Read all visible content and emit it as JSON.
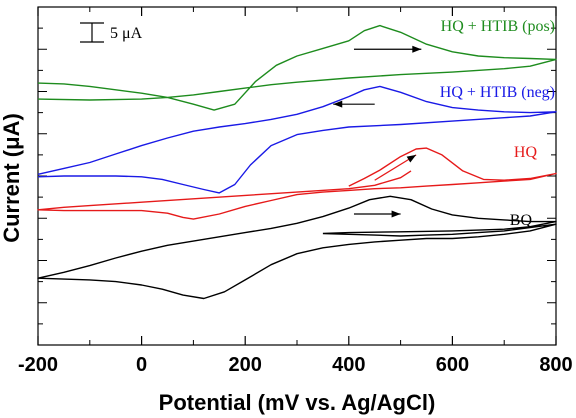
{
  "chart_data": {
    "type": "line",
    "xlabel": "Potential (mV vs. Ag/AgCl)",
    "ylabel": "Current (μA)",
    "xlim": [
      -200,
      800
    ],
    "x_ticks": [
      -200,
      0,
      200,
      400,
      600,
      800
    ],
    "x_tick_labels": [
      "-200",
      "0",
      "200",
      "400",
      "600",
      "800"
    ],
    "y_scale_bar_label": "5 μA",
    "grid": false,
    "series": [
      {
        "name": "HQ + HTIB (pos)",
        "color": "#1e8c1e",
        "scan_direction": "right",
        "points": [
          [
            -200,
            31.0
          ],
          [
            -150,
            30.9
          ],
          [
            -100,
            30.6
          ],
          [
            -50,
            30.2
          ],
          [
            0,
            29.8
          ],
          [
            50,
            29.3
          ],
          [
            100,
            28.5
          ],
          [
            140,
            27.8
          ],
          [
            180,
            28.5
          ],
          [
            220,
            31.2
          ],
          [
            260,
            33.1
          ],
          [
            300,
            34.2
          ],
          [
            350,
            35.1
          ],
          [
            400,
            36.0
          ],
          [
            430,
            37.2
          ],
          [
            460,
            37.8
          ],
          [
            500,
            37.0
          ],
          [
            550,
            35.6
          ],
          [
            600,
            34.7
          ],
          [
            650,
            34.2
          ],
          [
            700,
            34.0
          ],
          [
            750,
            33.9
          ],
          [
            800,
            33.8
          ],
          [
            750,
            33.0
          ],
          [
            700,
            32.7
          ],
          [
            600,
            32.3
          ],
          [
            500,
            32.0
          ],
          [
            400,
            31.6
          ],
          [
            300,
            31.1
          ],
          [
            250,
            30.8
          ],
          [
            200,
            30.4
          ],
          [
            150,
            30.0
          ],
          [
            100,
            29.6
          ],
          [
            50,
            29.3
          ],
          [
            0,
            29.1
          ],
          [
            -100,
            29.0
          ],
          [
            -200,
            29.1
          ]
        ]
      },
      {
        "name": "HQ + HTIB (neg)",
        "color": "#1a1ae6",
        "scan_direction": "left",
        "points": [
          [
            -200,
            20.2
          ],
          [
            -150,
            20.9
          ],
          [
            -100,
            21.6
          ],
          [
            -50,
            22.6
          ],
          [
            0,
            23.6
          ],
          [
            50,
            24.5
          ],
          [
            100,
            25.3
          ],
          [
            150,
            25.8
          ],
          [
            200,
            26.2
          ],
          [
            250,
            26.7
          ],
          [
            300,
            27.3
          ],
          [
            350,
            28.2
          ],
          [
            400,
            29.4
          ],
          [
            430,
            30.2
          ],
          [
            460,
            30.6
          ],
          [
            500,
            29.9
          ],
          [
            550,
            28.8
          ],
          [
            600,
            28.1
          ],
          [
            650,
            27.8
          ],
          [
            700,
            27.6
          ],
          [
            750,
            27.5
          ],
          [
            800,
            27.6
          ],
          [
            750,
            27.1
          ],
          [
            700,
            26.9
          ],
          [
            600,
            26.5
          ],
          [
            500,
            26.1
          ],
          [
            400,
            25.8
          ],
          [
            350,
            25.4
          ],
          [
            300,
            24.9
          ],
          [
            250,
            23.6
          ],
          [
            210,
            21.3
          ],
          [
            180,
            19.0
          ],
          [
            150,
            18.0
          ],
          [
            120,
            18.4
          ],
          [
            80,
            19.0
          ],
          [
            40,
            19.6
          ],
          [
            0,
            19.9
          ],
          [
            -50,
            20.0
          ],
          [
            -100,
            20.0
          ],
          [
            -150,
            20.0
          ],
          [
            -200,
            19.9
          ]
        ]
      },
      {
        "name": "HQ",
        "color": "#e61a1a",
        "scan_direction": "right",
        "points": [
          [
            400,
            18.8
          ],
          [
            430,
            19.7
          ],
          [
            460,
            20.7
          ],
          [
            500,
            22.3
          ],
          [
            530,
            23.2
          ],
          [
            550,
            23.3
          ],
          [
            580,
            22.5
          ],
          [
            620,
            20.6
          ],
          [
            660,
            19.6
          ],
          [
            700,
            19.5
          ],
          [
            750,
            19.7
          ],
          [
            800,
            20.3
          ],
          [
            750,
            19.6
          ],
          [
            700,
            19.4
          ],
          [
            650,
            19.2
          ],
          [
            600,
            19.0
          ],
          [
            550,
            18.8
          ],
          [
            500,
            18.6
          ],
          [
            450,
            18.5
          ],
          [
            400,
            18.3
          ],
          [
            350,
            18.1
          ],
          [
            300,
            17.8
          ],
          [
            250,
            17.1
          ],
          [
            200,
            16.4
          ],
          [
            150,
            15.5
          ],
          [
            100,
            14.9
          ],
          [
            80,
            15.1
          ],
          [
            50,
            15.6
          ],
          [
            0,
            15.9
          ],
          [
            -50,
            15.9
          ],
          [
            -100,
            15.9
          ],
          [
            -150,
            15.9
          ],
          [
            -200,
            16.0
          ],
          [
            -150,
            16.3
          ],
          [
            -100,
            16.5
          ],
          [
            0,
            16.9
          ],
          [
            100,
            17.3
          ],
          [
            200,
            17.7
          ],
          [
            300,
            18.1
          ],
          [
            400,
            18.5
          ],
          [
            450,
            18.9
          ],
          [
            500,
            19.8
          ],
          [
            520,
            20.6
          ]
        ]
      },
      {
        "name": "BQ",
        "color": "#000000",
        "scan_direction": "right",
        "points": [
          [
            350,
            13.2
          ],
          [
            400,
            13.1
          ],
          [
            450,
            13.0
          ],
          [
            500,
            12.9
          ],
          [
            550,
            13.0
          ],
          [
            600,
            13.1
          ],
          [
            650,
            13.3
          ],
          [
            700,
            13.5
          ],
          [
            750,
            13.9
          ],
          [
            800,
            14.3
          ],
          [
            750,
            13.5
          ],
          [
            700,
            13.1
          ],
          [
            650,
            12.8
          ],
          [
            600,
            12.6
          ],
          [
            550,
            12.6
          ],
          [
            500,
            12.4
          ],
          [
            450,
            12.2
          ],
          [
            400,
            11.9
          ],
          [
            350,
            11.5
          ],
          [
            300,
            10.8
          ],
          [
            250,
            9.5
          ],
          [
            200,
            7.7
          ],
          [
            160,
            6.3
          ],
          [
            120,
            5.5
          ],
          [
            80,
            5.9
          ],
          [
            40,
            6.6
          ],
          [
            0,
            7.1
          ],
          [
            -50,
            7.5
          ],
          [
            -100,
            7.7
          ],
          [
            -150,
            7.8
          ],
          [
            -200,
            7.9
          ],
          [
            -150,
            8.6
          ],
          [
            -100,
            9.4
          ],
          [
            -50,
            10.3
          ],
          [
            0,
            11.1
          ],
          [
            50,
            11.8
          ],
          [
            100,
            12.3
          ],
          [
            150,
            12.8
          ],
          [
            200,
            13.3
          ],
          [
            250,
            13.8
          ],
          [
            300,
            14.4
          ],
          [
            350,
            15.2
          ],
          [
            400,
            16.2
          ],
          [
            440,
            17.2
          ],
          [
            480,
            17.6
          ],
          [
            520,
            17.2
          ],
          [
            560,
            16.1
          ],
          [
            600,
            15.4
          ],
          [
            650,
            15.0
          ],
          [
            700,
            14.8
          ],
          [
            750,
            14.6
          ],
          [
            800,
            14.6
          ],
          [
            750,
            14.0
          ],
          [
            700,
            13.7
          ],
          [
            650,
            13.6
          ],
          [
            600,
            13.5
          ],
          [
            500,
            13.4
          ],
          [
            400,
            13.3
          ],
          [
            350,
            13.2
          ]
        ]
      }
    ],
    "arrows": [
      {
        "series": "HQ + HTIB (pos)",
        "direction": "right",
        "from": [
          410,
          35.0
        ],
        "to": [
          540,
          35.0
        ]
      },
      {
        "series": "HQ + HTIB (neg)",
        "direction": "left",
        "from": [
          450,
          28.5
        ],
        "to": [
          370,
          28.5
        ]
      },
      {
        "series": "HQ",
        "direction": "up-right",
        "from": [
          450,
          19.5
        ],
        "to": [
          530,
          22.5
        ]
      },
      {
        "series": "BQ",
        "direction": "right",
        "from": [
          410,
          15.5
        ],
        "to": [
          500,
          15.5
        ]
      }
    ]
  }
}
